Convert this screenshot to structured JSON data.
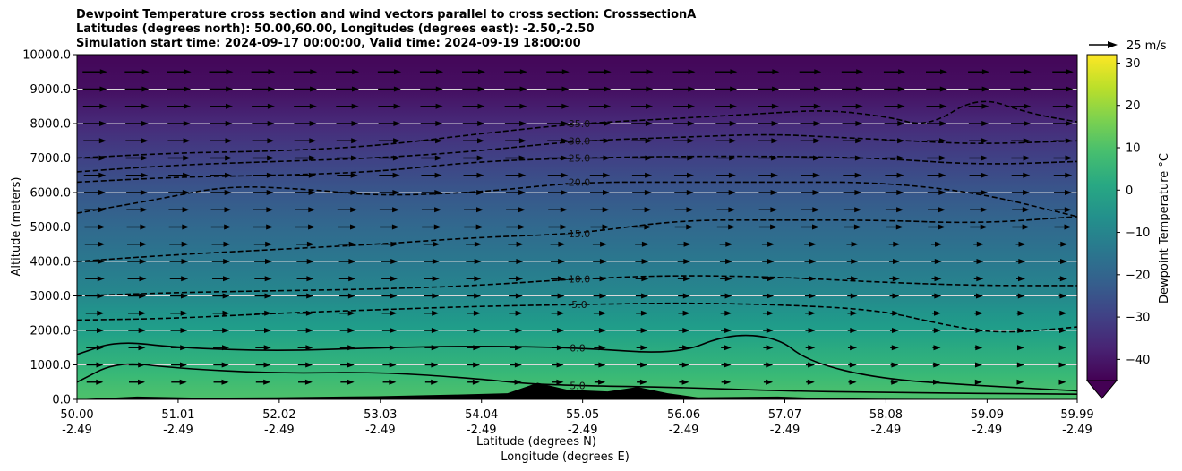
{
  "chart_data": {
    "type": "heatmap",
    "title_lines": [
      "Dewpoint Temperature cross section and wind vectors parallel to cross section: CrosssectionA",
      "Latitudes (degrees north): 50.00,60.00, Longitudes (degrees east): -2.50,-2.50",
      "Simulation start time: 2024-09-17 00:00:00, Valid time: 2024-09-19 18:00:00"
    ],
    "ylabel": "Altitude (meters)",
    "xlabel_lines": [
      "Latitude (degrees N)",
      "Longitude (degrees E)"
    ],
    "xlim": [
      50.0,
      59.99
    ],
    "ylim": [
      0,
      10000
    ],
    "x_ticks": [
      {
        "value": 50.0,
        "lat": "50.00",
        "lon": "-2.49"
      },
      {
        "value": 51.01,
        "lat": "51.01",
        "lon": "-2.49"
      },
      {
        "value": 52.02,
        "lat": "52.02",
        "lon": "-2.49"
      },
      {
        "value": 53.03,
        "lat": "53.03",
        "lon": "-2.49"
      },
      {
        "value": 54.04,
        "lat": "54.04",
        "lon": "-2.49"
      },
      {
        "value": 55.05,
        "lat": "55.05",
        "lon": "-2.49"
      },
      {
        "value": 56.06,
        "lat": "56.06",
        "lon": "-2.49"
      },
      {
        "value": 57.07,
        "lat": "57.07",
        "lon": "-2.49"
      },
      {
        "value": 58.08,
        "lat": "58.08",
        "lon": "-2.49"
      },
      {
        "value": 59.09,
        "lat": "59.09",
        "lon": "-2.49"
      },
      {
        "value": 59.99,
        "lat": "59.99",
        "lon": "-2.49"
      }
    ],
    "y_ticks": [
      {
        "value": 0,
        "label": "0.0"
      },
      {
        "value": 1000,
        "label": "1000.0"
      },
      {
        "value": 2000,
        "label": "2000.0"
      },
      {
        "value": 3000,
        "label": "3000.0"
      },
      {
        "value": 4000,
        "label": "4000.0"
      },
      {
        "value": 5000,
        "label": "5000.0"
      },
      {
        "value": 6000,
        "label": "6000.0"
      },
      {
        "value": 7000,
        "label": "7000.0"
      },
      {
        "value": 8000,
        "label": "8000.0"
      },
      {
        "value": 9000,
        "label": "9000.0"
      },
      {
        "value": 10000,
        "label": "10000.0"
      }
    ],
    "grid": "horizontal",
    "colorbar": {
      "label": "Dewpoint Temperature $^\\circ$C",
      "label_display": "Dewpoint Temperature °C",
      "range": [
        -45,
        32
      ],
      "ticks": [
        {
          "value": 30,
          "label": "30"
        },
        {
          "value": 20,
          "label": "20"
        },
        {
          "value": 10,
          "label": "10"
        },
        {
          "value": 0,
          "label": "0"
        },
        {
          "value": -10,
          "label": "−10"
        },
        {
          "value": -20,
          "label": "−20"
        },
        {
          "value": -30,
          "label": "−30"
        },
        {
          "value": -40,
          "label": "−40"
        }
      ],
      "extend": "min",
      "colormap": "viridis"
    },
    "quiver_key": {
      "label": "25 m/s",
      "speed": 25
    },
    "field_profile": [
      {
        "z": 0,
        "t": 10
      },
      {
        "z": 300,
        "t": 9
      },
      {
        "z": 700,
        "t": 7
      },
      {
        "z": 1000,
        "t": 5
      },
      {
        "z": 1500,
        "t": 2
      },
      {
        "z": 2000,
        "t": -2
      },
      {
        "z": 2500,
        "t": -5
      },
      {
        "z": 3000,
        "t": -9
      },
      {
        "z": 4000,
        "t": -14
      },
      {
        "z": 5000,
        "t": -19
      },
      {
        "z": 6000,
        "t": -24
      },
      {
        "z": 7000,
        "t": -30
      },
      {
        "z": 8000,
        "t": -36
      },
      {
        "z": 9000,
        "t": -42
      },
      {
        "z": 10000,
        "t": -44
      }
    ],
    "contours": [
      {
        "level": -35,
        "label": "-35.0",
        "style": "dashed",
        "points": [
          [
            50.0,
            7000
          ],
          [
            51.0,
            7150
          ],
          [
            52.0,
            7200
          ],
          [
            53.0,
            7350
          ],
          [
            54.0,
            7700
          ],
          [
            55.0,
            8000
          ],
          [
            56.0,
            8150
          ],
          [
            56.9,
            8300
          ],
          [
            57.5,
            8400
          ],
          [
            58.1,
            8200
          ],
          [
            58.5,
            7900
          ],
          [
            59.0,
            8800
          ],
          [
            59.5,
            8300
          ],
          [
            59.99,
            8050
          ]
        ]
      },
      {
        "level": -30,
        "label": "-30.0",
        "style": "dashed",
        "points": [
          [
            50.0,
            6600
          ],
          [
            51.0,
            6800
          ],
          [
            52.0,
            6900
          ],
          [
            53.0,
            7000
          ],
          [
            54.0,
            7200
          ],
          [
            55.0,
            7500
          ],
          [
            56.0,
            7600
          ],
          [
            56.9,
            7700
          ],
          [
            57.6,
            7600
          ],
          [
            58.3,
            7500
          ],
          [
            59.0,
            7400
          ],
          [
            59.99,
            7500
          ]
        ]
      },
      {
        "level": -25,
        "label": "-25.0",
        "style": "dashed",
        "points": [
          [
            50.0,
            6300
          ],
          [
            51.0,
            6450
          ],
          [
            52.0,
            6500
          ],
          [
            53.0,
            6600
          ],
          [
            54.0,
            6900
          ],
          [
            55.0,
            7000
          ],
          [
            56.0,
            7050
          ],
          [
            57.0,
            7050
          ],
          [
            58.0,
            7000
          ],
          [
            59.0,
            6800
          ],
          [
            59.99,
            6900
          ]
        ]
      },
      {
        "level": -20,
        "label": "-20.0",
        "style": "dashed",
        "points": [
          [
            50.0,
            5400
          ],
          [
            50.8,
            5800
          ],
          [
            51.5,
            6200
          ],
          [
            52.3,
            6100
          ],
          [
            53.0,
            5900
          ],
          [
            54.0,
            6000
          ],
          [
            55.0,
            6300
          ],
          [
            56.0,
            6300
          ],
          [
            57.0,
            6300
          ],
          [
            58.0,
            6300
          ],
          [
            59.0,
            6000
          ],
          [
            59.99,
            5300
          ]
        ]
      },
      {
        "level": -15,
        "label": "-15.0",
        "style": "dashed",
        "points": [
          [
            50.0,
            4000
          ],
          [
            51.0,
            4200
          ],
          [
            52.0,
            4350
          ],
          [
            53.0,
            4500
          ],
          [
            54.0,
            4700
          ],
          [
            55.0,
            4800
          ],
          [
            56.0,
            5200
          ],
          [
            57.0,
            5200
          ],
          [
            58.0,
            5200
          ],
          [
            59.0,
            5100
          ],
          [
            59.99,
            5300
          ]
        ]
      },
      {
        "level": -10,
        "label": "-10.0",
        "style": "dashed",
        "points": [
          [
            50.0,
            3000
          ],
          [
            51.0,
            3100
          ],
          [
            52.0,
            3150
          ],
          [
            53.0,
            3200
          ],
          [
            54.0,
            3300
          ],
          [
            55.0,
            3500
          ],
          [
            56.0,
            3600
          ],
          [
            57.0,
            3550
          ],
          [
            58.0,
            3400
          ],
          [
            59.0,
            3300
          ],
          [
            59.99,
            3300
          ]
        ]
      },
      {
        "level": -5,
        "label": "-5.0",
        "style": "dashed",
        "points": [
          [
            50.0,
            2300
          ],
          [
            51.0,
            2350
          ],
          [
            52.0,
            2500
          ],
          [
            53.0,
            2600
          ],
          [
            54.0,
            2700
          ],
          [
            55.0,
            2750
          ],
          [
            56.0,
            2800
          ],
          [
            57.0,
            2750
          ],
          [
            58.0,
            2600
          ],
          [
            58.6,
            2200
          ],
          [
            59.2,
            1900
          ],
          [
            59.99,
            2100
          ]
        ]
      },
      {
        "level": 0,
        "label": "0.0",
        "style": "solid",
        "points": [
          [
            50.0,
            1300
          ],
          [
            50.4,
            1700
          ],
          [
            51.0,
            1500
          ],
          [
            52.0,
            1400
          ],
          [
            53.0,
            1500
          ],
          [
            54.0,
            1550
          ],
          [
            55.0,
            1500
          ],
          [
            56.0,
            1300
          ],
          [
            56.5,
            1900
          ],
          [
            57.0,
            1800
          ],
          [
            57.3,
            1100
          ],
          [
            58.0,
            600
          ],
          [
            59.0,
            400
          ],
          [
            59.99,
            250
          ]
        ]
      },
      {
        "level": 5,
        "label": "5.0",
        "style": "solid",
        "points": [
          [
            50.0,
            500
          ],
          [
            50.4,
            1100
          ],
          [
            51.0,
            900
          ],
          [
            52.0,
            750
          ],
          [
            53.0,
            800
          ],
          [
            54.0,
            600
          ],
          [
            54.5,
            450
          ],
          [
            55.0,
            400
          ],
          [
            56.0,
            350
          ],
          [
            57.0,
            250
          ],
          [
            58.0,
            200
          ],
          [
            59.99,
            150
          ]
        ]
      }
    ],
    "terrain": [
      [
        50.0,
        0
      ],
      [
        50.6,
        80
      ],
      [
        51.2,
        50
      ],
      [
        52.0,
        60
      ],
      [
        53.0,
        90
      ],
      [
        53.8,
        140
      ],
      [
        54.3,
        180
      ],
      [
        54.6,
        480
      ],
      [
        54.9,
        280
      ],
      [
        55.3,
        230
      ],
      [
        55.6,
        360
      ],
      [
        55.9,
        180
      ],
      [
        56.2,
        60
      ],
      [
        57.0,
        80
      ],
      [
        57.5,
        30
      ],
      [
        58.0,
        20
      ],
      [
        59.0,
        10
      ],
      [
        59.99,
        0
      ]
    ]
  }
}
